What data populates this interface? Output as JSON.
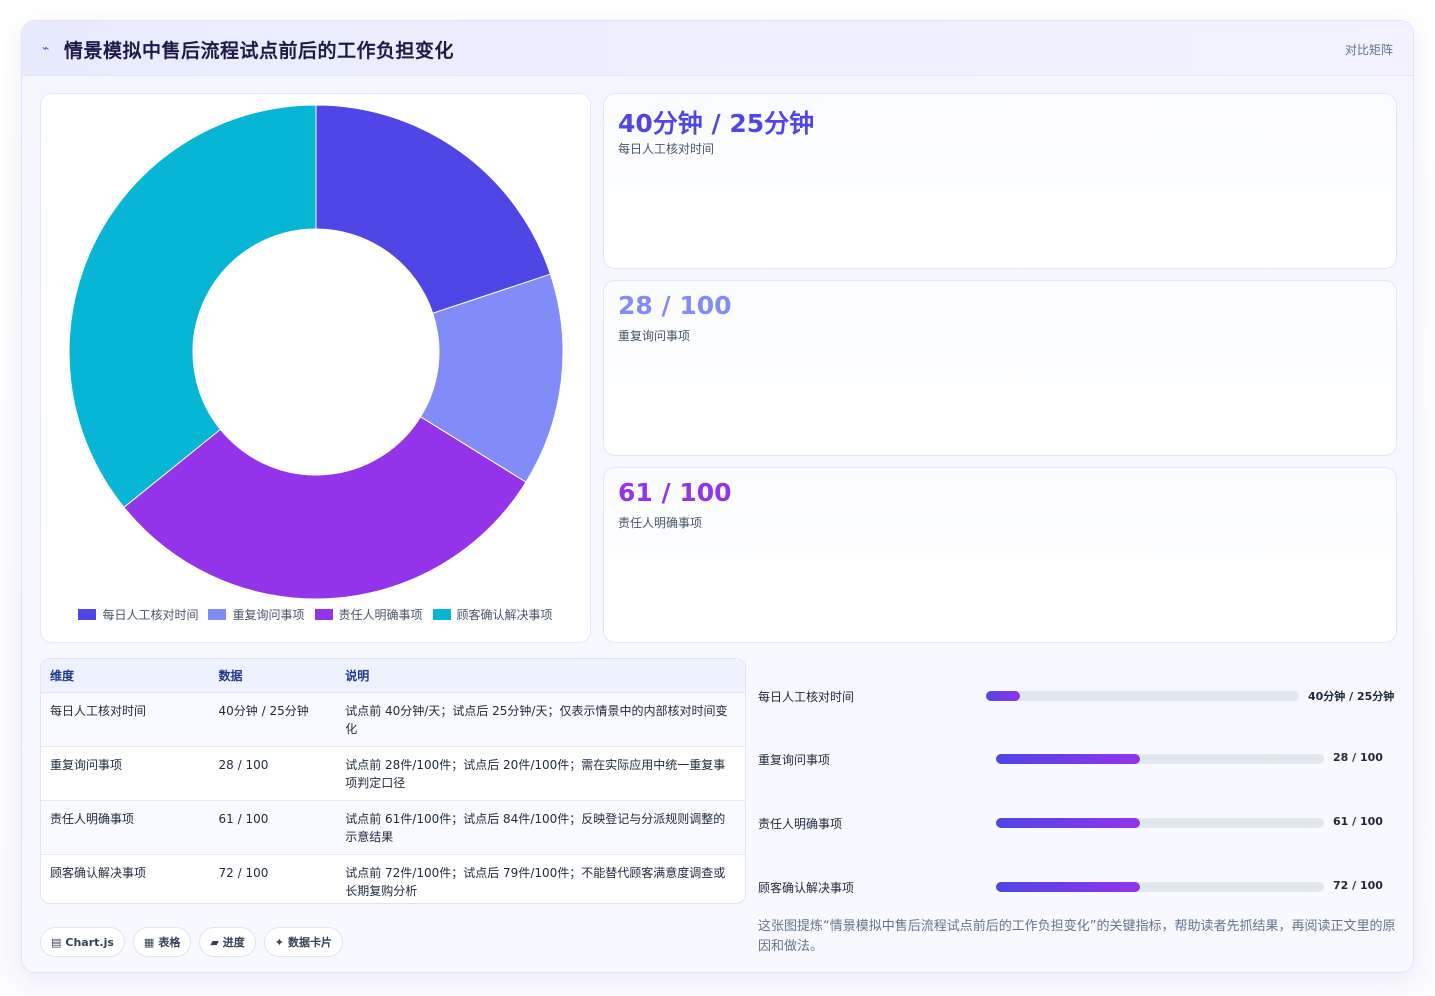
{
  "header": {
    "title": "情景模拟中售后流程试点前后的工作负担变化",
    "icon": "sparkle-icon",
    "mode_label": "对比矩阵"
  },
  "colors": {
    "indigo": "#4f46e5",
    "light_indigo": "#818cf8",
    "purple": "#9333ea",
    "cyan": "#06b6d4"
  },
  "chart_data": {
    "type": "pie",
    "variant": "doughnut",
    "categories": [
      "每日人工核对时间",
      "重复询问事项",
      "责任人明确事项",
      "顾客确认解决事项"
    ],
    "values": [
      40,
      28,
      61,
      72
    ],
    "colors": [
      "#4f46e5",
      "#818cf8",
      "#9333ea",
      "#06b6d4"
    ],
    "legend_position": "bottom"
  },
  "kpis": [
    {
      "value": "40分钟 / 25分钟",
      "label": "每日人工核对时间",
      "color": "#4f46e5"
    },
    {
      "value": "28 / 100",
      "label": "重复询问事项",
      "color": "#818cf8"
    },
    {
      "value": "61 / 100",
      "label": "责任人明确事项",
      "color": "#9333ea"
    }
  ],
  "table": {
    "headers": [
      "维度",
      "数据",
      "说明"
    ],
    "rows": [
      [
        "每日人工核对时间",
        "40分钟 / 25分钟",
        "试点前 40分钟/天；试点后 25分钟/天；仅表示情景中的内部核对时间变化"
      ],
      [
        "重复询问事项",
        "28 / 100",
        "试点前 28件/100件；试点后 20件/100件；需在实际应用中统一重复事项判定口径"
      ],
      [
        "责任人明确事项",
        "61 / 100",
        "试点前 61件/100件；试点后 84件/100件；反映登记与分派规则调整的示意结果"
      ],
      [
        "顾客确认解决事项",
        "72 / 100",
        "试点前 72件/100件；试点后 79件/100件；不能替代顾客满意度调查或长期复购分析"
      ]
    ]
  },
  "progress": [
    {
      "label": "每日人工核对时间",
      "value_text": "40分钟 / 25分钟",
      "fraction": 0.11
    },
    {
      "label": "重复询问事项",
      "value_text": "28 / 100",
      "fraction": 0.44
    },
    {
      "label": "责任人明确事项",
      "value_text": "61 / 100",
      "fraction": 0.44
    },
    {
      "label": "顾客确认解决事项",
      "value_text": "72 / 100",
      "fraction": 0.44
    }
  ],
  "chips": [
    {
      "icon": "chart-icon",
      "glyph": "▤",
      "label": "Chart.js"
    },
    {
      "icon": "table-icon",
      "glyph": "▦",
      "label": "表格"
    },
    {
      "icon": "progress-icon",
      "glyph": "▰",
      "label": "进度"
    },
    {
      "icon": "card-icon",
      "glyph": "✦",
      "label": "数据卡片"
    }
  ],
  "summary": "这张图提炼“情景模拟中售后流程试点前后的工作负担变化”的关键指标，帮助读者先抓结果，再阅读正文里的原因和做法。"
}
